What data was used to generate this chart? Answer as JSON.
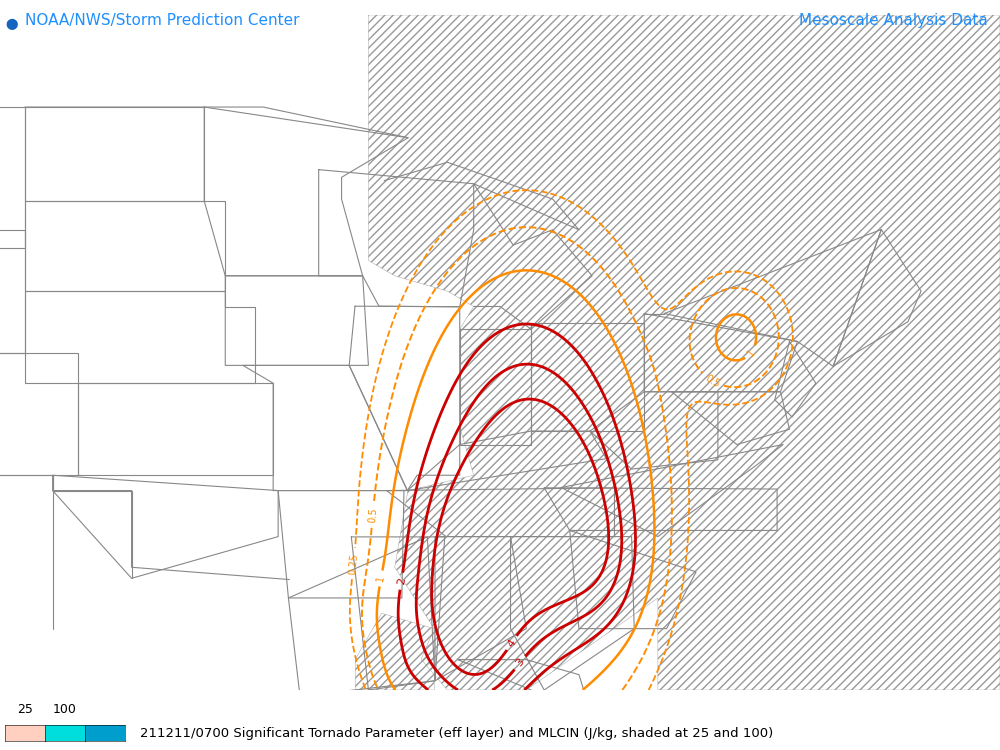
{
  "title_left": "NOAA/NWS/Storm Prediction Center",
  "title_right": "Mesoscale Analysis Data",
  "title_left_color": "#1E90FF",
  "title_right_color": "#1E90FF",
  "bottom_text": "211211/0700 Significant Tornado Parameter (eff layer) and MLCIN (J/kg, shaded at 25 and 100)",
  "colorbar_labels": [
    "25",
    "100"
  ],
  "colorbar_colors": [
    "#FFD0C0",
    "#00DDDD",
    "#009ECC"
  ],
  "background_color": "#FFFFFF",
  "hatch_color": "#888888",
  "state_line_color": "#888888",
  "orange_contour_color": "#FF8C00",
  "red_contour_color": "#CC0000",
  "figsize": [
    10.0,
    7.5
  ],
  "dpi": 100,
  "xlim": [
    -105,
    -67
  ],
  "ylim": [
    30,
    52
  ]
}
